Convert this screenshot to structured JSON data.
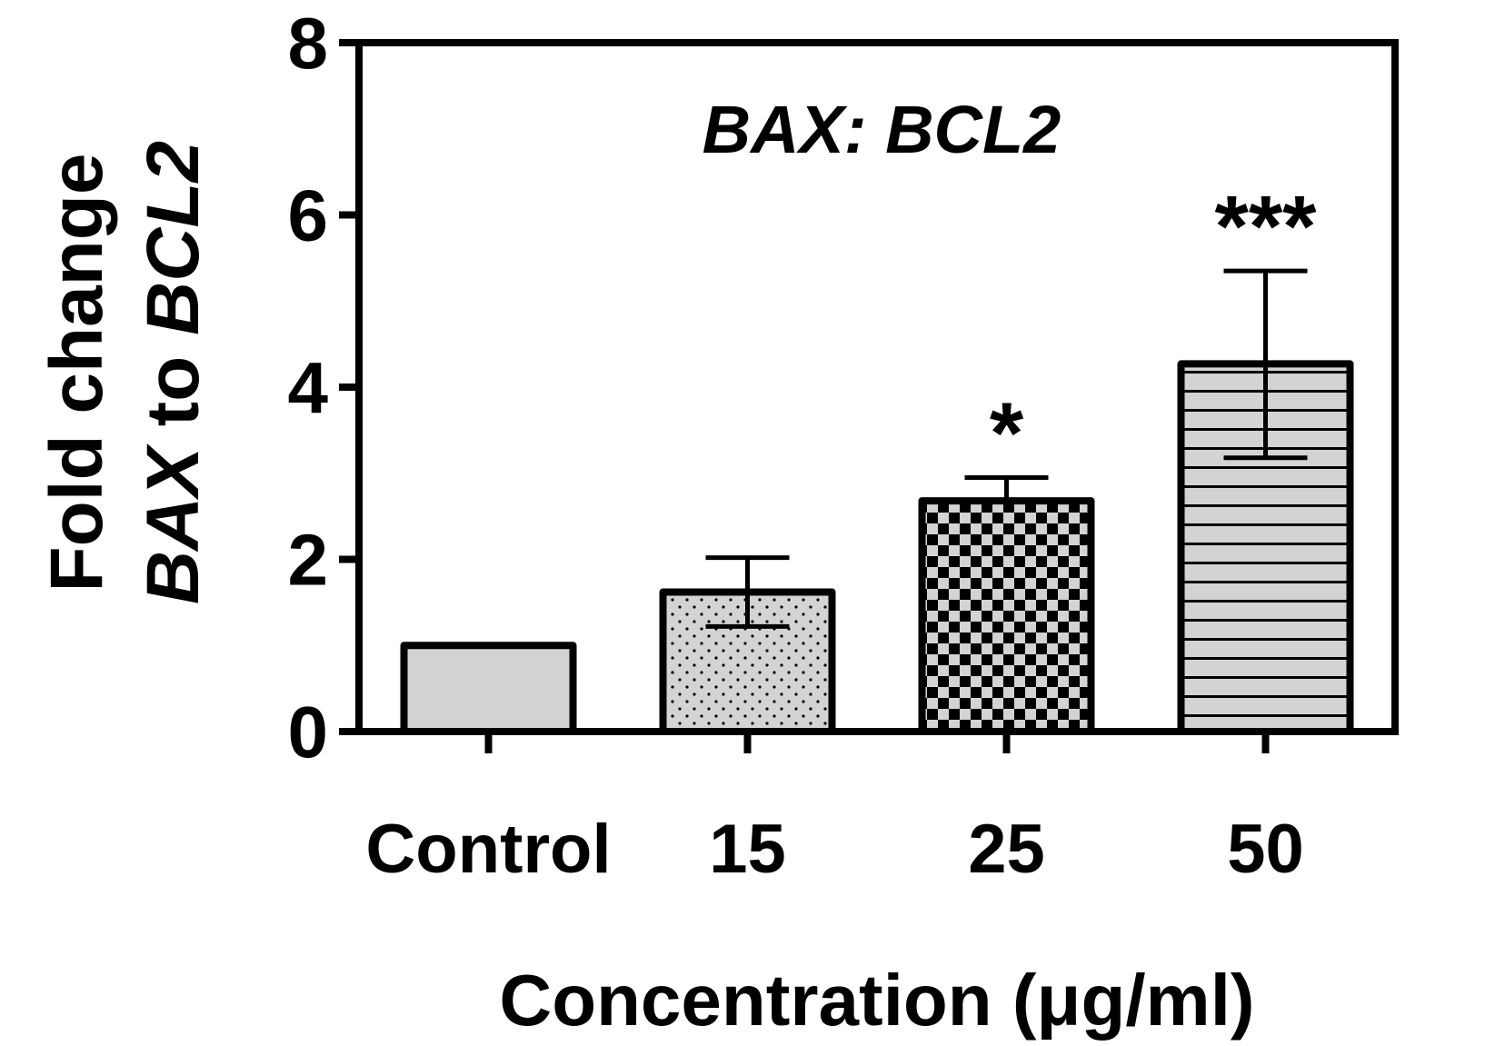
{
  "chart_data": {
    "type": "bar",
    "title": "BAX: BCL2",
    "xlabel": "Concentration (μg/ml)",
    "ylabel_line1": "Fold change",
    "ylabel_line2": "BAX to BCL2",
    "categories": [
      "Control",
      "15",
      "25",
      "50"
    ],
    "values": [
      1.0,
      1.62,
      2.68,
      4.27
    ],
    "error_upper": [
      null,
      2.02,
      2.95,
      5.35
    ],
    "error_lower": [
      null,
      1.22,
      null,
      3.18
    ],
    "significance": [
      "",
      "",
      "*",
      "***"
    ],
    "patterns": [
      "solid",
      "dots",
      "checker",
      "hlines"
    ],
    "ylim": [
      0,
      8
    ],
    "yticks": [
      0,
      2,
      4,
      6,
      8
    ],
    "bar_fill": "#d3d3d3",
    "stroke_color": "#000000"
  }
}
